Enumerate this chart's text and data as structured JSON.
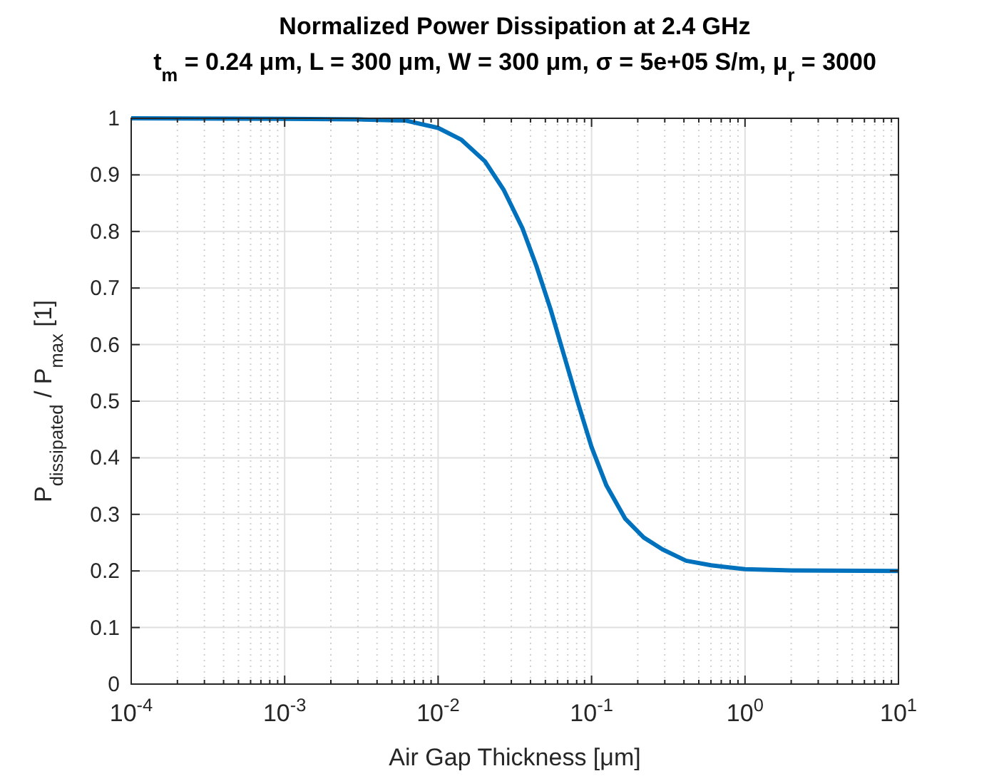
{
  "chart_data": {
    "type": "line",
    "title": "Normalized Power Dissipation at 2.4 GHz",
    "subtitle": "t$_{m}$ = 0.24 μm, L = 300 μm, W = 300 μm, σ = 5e+05 S/m, μ$_{r}$ = 3000",
    "xlabel": "Air Gap Thickness [μm]",
    "ylabel": "P$_{dissipated}$ / P$_{max}$ [1]",
    "log": "x",
    "grid": true,
    "xlim": [
      0.0001,
      10
    ],
    "xticks": [
      {
        "value": 0.0001,
        "label": "10$^{-4}$"
      },
      {
        "value": 0.001,
        "label": "10$^{-3}$"
      },
      {
        "value": 0.01,
        "label": "10$^{-2}$"
      },
      {
        "value": 0.1,
        "label": "10$^{-1}$"
      },
      {
        "value": 1,
        "label": "10$^{0}$"
      },
      {
        "value": 10,
        "label": "10$^{1}$"
      }
    ],
    "ylim": [
      0,
      1
    ],
    "yticks": [
      0,
      0.1,
      0.2,
      0.3,
      0.4,
      0.5,
      0.6,
      0.7,
      0.8,
      0.9,
      1
    ],
    "series": [
      {
        "color": "#0072bd",
        "x": [
          0.0001,
          0.001,
          0.003,
          0.00612,
          0.01,
          0.0142,
          0.0202,
          0.0267,
          0.0354,
          0.0437,
          0.054,
          0.0665,
          0.0822,
          0.1,
          0.125,
          0.166,
          0.219,
          0.29,
          0.413,
          0.6,
          1,
          2,
          10
        ],
        "values": [
          1,
          0.999,
          0.998,
          0.996,
          0.983,
          0.962,
          0.924,
          0.874,
          0.806,
          0.739,
          0.663,
          0.579,
          0.494,
          0.419,
          0.351,
          0.292,
          0.259,
          0.238,
          0.218,
          0.21,
          0.203,
          0.201,
          0.2
        ]
      }
    ]
  }
}
